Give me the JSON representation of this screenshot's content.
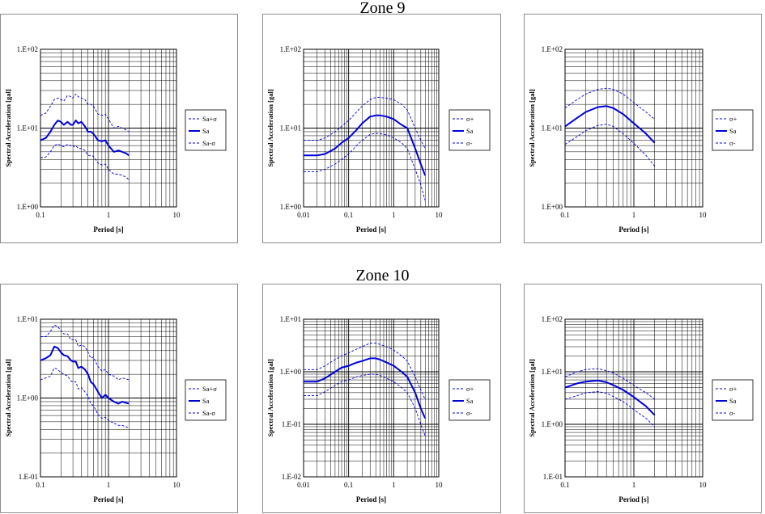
{
  "zones": [
    {
      "title": "Zone 9"
    },
    {
      "title": "Zone 10"
    }
  ],
  "colors": {
    "series": "#0000dd",
    "grid": "#000000",
    "frame": "#8c8c8c"
  },
  "chart_data": [
    {
      "type": "line",
      "zone": "Zone 9",
      "position": "left",
      "title": "",
      "xlabel": "Period [s]",
      "ylabel": "Spectral Acceleration [gal]",
      "xscale": "log",
      "yscale": "log",
      "xlim": [
        0.1,
        10
      ],
      "ylim": [
        1,
        100
      ],
      "xticks": [
        "0.1",
        "1",
        "10"
      ],
      "yticks": [
        "1.E+00",
        "1.E+01",
        "1.E+02"
      ],
      "grid": true,
      "legend": "right",
      "x": [
        0.1,
        0.12,
        0.14,
        0.16,
        0.18,
        0.2,
        0.22,
        0.25,
        0.28,
        0.3,
        0.33,
        0.36,
        0.4,
        0.45,
        0.5,
        0.55,
        0.6,
        0.7,
        0.8,
        0.9,
        1.0,
        1.2,
        1.4,
        1.6,
        1.8,
        2.0
      ],
      "series": [
        {
          "name": "Sa+σ",
          "dash": true,
          "values": [
            14.5,
            15.5,
            19,
            23,
            24,
            23,
            22,
            26,
            25,
            24,
            27,
            25,
            24,
            23,
            20,
            20,
            19,
            15,
            14.5,
            15,
            13,
            10,
            10.5,
            10,
            9.5,
            9
          ]
        },
        {
          "name": "Sa",
          "dash": false,
          "values": [
            7,
            7.5,
            9,
            11,
            12.5,
            12,
            11,
            12,
            11,
            11,
            12.5,
            11.5,
            12,
            10.5,
            9,
            9,
            8.5,
            7,
            6.8,
            7,
            6,
            5,
            5.2,
            5,
            4.8,
            4.5
          ]
        },
        {
          "name": "Sa-σ",
          "dash": true,
          "values": [
            4.2,
            4.3,
            5,
            6,
            6.3,
            6,
            5.8,
            6.2,
            6,
            5.8,
            6,
            5.5,
            5.5,
            5.2,
            4.5,
            4.5,
            4.4,
            3.6,
            3.4,
            3.5,
            3,
            2.6,
            2.6,
            2.5,
            2.4,
            2.2
          ]
        }
      ]
    },
    {
      "type": "line",
      "zone": "Zone 9",
      "position": "middle",
      "title": "",
      "xlabel": "Period [s]",
      "ylabel": "Spectral Acceleration [gal]",
      "xscale": "log",
      "yscale": "log",
      "xlim": [
        0.01,
        10
      ],
      "ylim": [
        1,
        100
      ],
      "xticks": [
        "0.01",
        "0.1",
        "1",
        "10"
      ],
      "yticks": [
        "1.E+00",
        "1.E+01",
        "1.E+02"
      ],
      "grid": true,
      "legend": "right",
      "x": [
        0.01,
        0.02,
        0.03,
        0.05,
        0.07,
        0.1,
        0.15,
        0.2,
        0.3,
        0.4,
        0.5,
        0.7,
        1.0,
        1.5,
        2.0,
        3.0,
        4.0,
        5.0
      ],
      "series": [
        {
          "name": "σ+",
          "dash": true,
          "values": [
            7,
            7,
            7.5,
            9,
            10.5,
            12.5,
            16,
            19,
            23,
            24.5,
            24.5,
            24,
            23,
            20,
            17,
            10,
            7,
            5.5
          ]
        },
        {
          "name": "Sa",
          "dash": false,
          "values": [
            4.5,
            4.5,
            4.7,
            5.5,
            6.5,
            7.5,
            9.5,
            11.5,
            14,
            14.5,
            14.5,
            14,
            13,
            11,
            10,
            5.5,
            3.5,
            2.5
          ]
        },
        {
          "name": "σ-",
          "dash": true,
          "values": [
            2.8,
            2.8,
            3,
            3.5,
            4,
            4.7,
            6,
            7,
            8.3,
            8.6,
            8.5,
            8.2,
            7.5,
            6.5,
            5.5,
            3,
            1.9,
            1.2
          ]
        }
      ]
    },
    {
      "type": "line",
      "zone": "Zone 9",
      "position": "right",
      "title": "",
      "xlabel": "Period [s]",
      "ylabel": "Spectral Acceleration [gal]",
      "xscale": "log",
      "yscale": "log",
      "xlim": [
        0.1,
        10
      ],
      "ylim": [
        1,
        100
      ],
      "xticks": [
        "0.1",
        "1",
        "10"
      ],
      "yticks": [
        "1.E+00",
        "1.E+01",
        "1.E+02"
      ],
      "grid": true,
      "legend": "right",
      "x": [
        0.1,
        0.15,
        0.2,
        0.3,
        0.4,
        0.5,
        0.7,
        1.0,
        1.5,
        2.0
      ],
      "series": [
        {
          "name": "σ+",
          "dash": true,
          "values": [
            18,
            23,
            27,
            31,
            32,
            31,
            27,
            21,
            16,
            13
          ]
        },
        {
          "name": "Sa",
          "dash": false,
          "values": [
            10.5,
            13.5,
            16,
            18.5,
            19,
            18,
            15,
            11.5,
            8.5,
            6.5
          ]
        },
        {
          "name": "σ-",
          "dash": true,
          "values": [
            6.2,
            7.8,
            9.3,
            10.8,
            11.2,
            10.5,
            8.5,
            6.4,
            4.5,
            3.3
          ]
        }
      ]
    },
    {
      "type": "line",
      "zone": "Zone 10",
      "position": "left",
      "title": "",
      "xlabel": "Period [s]",
      "ylabel": "Spectral Acceleration [gal]",
      "xscale": "log",
      "yscale": "log",
      "xlim": [
        0.1,
        10
      ],
      "ylim": [
        0.1,
        10
      ],
      "xticks": [
        "0.1",
        "1",
        "10"
      ],
      "yticks": [
        "1.E-01",
        "1.E+00",
        "1.E+01"
      ],
      "grid": true,
      "legend": "right",
      "x": [
        0.1,
        0.12,
        0.14,
        0.16,
        0.18,
        0.2,
        0.22,
        0.25,
        0.28,
        0.3,
        0.33,
        0.36,
        0.4,
        0.45,
        0.5,
        0.55,
        0.6,
        0.7,
        0.8,
        0.9,
        1.0,
        1.2,
        1.4,
        1.6,
        1.8,
        2.0
      ],
      "series": [
        {
          "name": "Sa+σ",
          "dash": true,
          "values": [
            6,
            6,
            7,
            8.5,
            8,
            7.2,
            6.5,
            6.5,
            5.5,
            5.5,
            5.5,
            4.5,
            4.7,
            4.5,
            3.8,
            3.2,
            3.3,
            2.5,
            2.2,
            2.3,
            2.0,
            1.9,
            1.7,
            1.8,
            1.75,
            1.7
          ]
        },
        {
          "name": "Sa",
          "dash": false,
          "values": [
            3,
            3.2,
            3.5,
            4.5,
            4.3,
            3.8,
            3.5,
            3.4,
            3,
            2.9,
            2.9,
            2.4,
            2.5,
            2.3,
            2.0,
            1.6,
            1.5,
            1.2,
            1.0,
            1.1,
            1.0,
            0.9,
            0.85,
            0.9,
            0.87,
            0.85
          ]
        },
        {
          "name": "Sa-σ",
          "dash": true,
          "values": [
            1.7,
            1.8,
            1.9,
            2.4,
            2.3,
            2.1,
            2.0,
            1.9,
            1.65,
            1.6,
            1.6,
            1.3,
            1.35,
            1.2,
            1.05,
            0.85,
            0.8,
            0.62,
            0.55,
            0.57,
            0.52,
            0.48,
            0.45,
            0.45,
            0.43,
            0.42
          ]
        }
      ]
    },
    {
      "type": "line",
      "zone": "Zone 10",
      "position": "middle",
      "title": "",
      "xlabel": "Period [s]",
      "ylabel": "Spectral Acceleration [gal]",
      "xscale": "log",
      "yscale": "log",
      "xlim": [
        0.01,
        10
      ],
      "ylim": [
        0.01,
        10
      ],
      "xticks": [
        "0.01",
        "0.1",
        "1",
        "10"
      ],
      "yticks": [
        "1.E-02",
        "1.E-01",
        "1.E+00",
        "1.E+01"
      ],
      "grid": true,
      "legend": "right",
      "x": [
        0.01,
        0.02,
        0.03,
        0.05,
        0.07,
        0.1,
        0.15,
        0.2,
        0.3,
        0.4,
        0.5,
        0.7,
        1.0,
        1.5,
        2.0,
        3.0,
        4.0,
        5.0
      ],
      "series": [
        {
          "name": "σ+",
          "dash": true,
          "values": [
            1.1,
            1.1,
            1.3,
            1.7,
            2.0,
            2.3,
            2.7,
            3.0,
            3.5,
            3.5,
            3.3,
            3.0,
            2.6,
            2.0,
            1.6,
            0.8,
            0.45,
            0.3
          ]
        },
        {
          "name": "Sa",
          "dash": false,
          "values": [
            0.65,
            0.65,
            0.75,
            1.0,
            1.2,
            1.3,
            1.5,
            1.6,
            1.8,
            1.8,
            1.7,
            1.5,
            1.3,
            1.0,
            0.8,
            0.4,
            0.2,
            0.13
          ]
        },
        {
          "name": "σ-",
          "dash": true,
          "values": [
            0.35,
            0.35,
            0.42,
            0.55,
            0.65,
            0.7,
            0.8,
            0.85,
            0.9,
            0.9,
            0.85,
            0.75,
            0.65,
            0.5,
            0.4,
            0.2,
            0.1,
            0.06
          ]
        }
      ]
    },
    {
      "type": "line",
      "zone": "Zone 10",
      "position": "right",
      "title": "",
      "xlabel": "Period [s]",
      "ylabel": "Spectral Acceleration [gal]",
      "xscale": "log",
      "yscale": "log",
      "xlim": [
        0.1,
        10
      ],
      "ylim": [
        0.1,
        100
      ],
      "xticks": [
        "0.1",
        "1",
        "10"
      ],
      "yticks": [
        "1.E-01",
        "1.E+00",
        "1.E+01",
        "1.E+02"
      ],
      "grid": true,
      "legend": "right",
      "x": [
        0.1,
        0.15,
        0.2,
        0.3,
        0.4,
        0.5,
        0.7,
        1.0,
        1.5,
        2.0
      ],
      "series": [
        {
          "name": "σ+",
          "dash": true,
          "values": [
            8,
            10,
            11,
            11.5,
            10.5,
            9.5,
            7.5,
            5.5,
            4,
            3
          ]
        },
        {
          "name": "Sa",
          "dash": false,
          "values": [
            5,
            6,
            6.5,
            6.8,
            6.3,
            5.6,
            4.5,
            3.3,
            2.2,
            1.5
          ]
        },
        {
          "name": "σ-",
          "dash": true,
          "values": [
            3,
            3.5,
            4,
            4.2,
            3.9,
            3.4,
            2.7,
            1.9,
            1.3,
            0.9
          ]
        }
      ]
    }
  ]
}
